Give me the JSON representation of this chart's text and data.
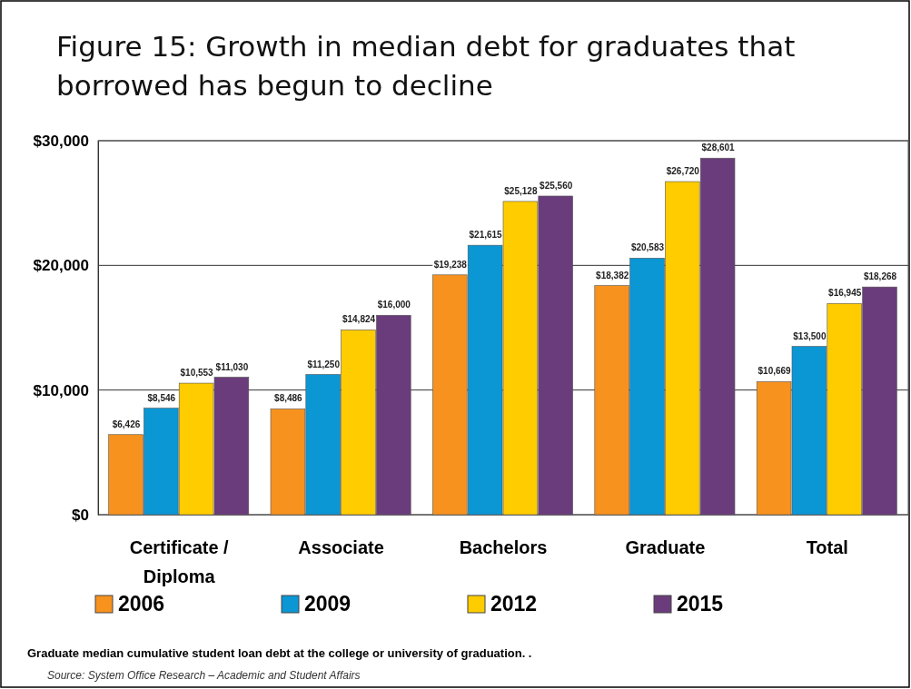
{
  "chart_data": {
    "type": "bar",
    "title": "Figure 15: Growth in median debt for graduates that borrowed has begun to decline",
    "categories": [
      "Certificate / Diploma",
      "Associate",
      "Bachelors",
      "Graduate",
      "Total"
    ],
    "series": [
      {
        "name": "2006",
        "color": "#f7921e",
        "values": [
          6426,
          8486,
          19238,
          18382,
          10669
        ],
        "value_labels": [
          "$6,426",
          "$8,486",
          "$19,238",
          "$18,382",
          "$10,669"
        ]
      },
      {
        "name": "2009",
        "color": "#0b96d4",
        "values": [
          8546,
          11250,
          21615,
          20583,
          13500
        ],
        "value_labels": [
          "$8,546",
          "$11,250",
          "$21,615",
          "$20,583",
          "$13,500"
        ]
      },
      {
        "name": "2012",
        "color": "#ffcc00",
        "values": [
          10553,
          14824,
          25128,
          26720,
          16945
        ],
        "value_labels": [
          "$10,553",
          "$14,824",
          "$25,128",
          "$26,720",
          "$16,945"
        ]
      },
      {
        "name": "2015",
        "color": "#6b3c7b",
        "values": [
          11030,
          16000,
          25560,
          28601,
          18268
        ],
        "value_labels": [
          "$11,030",
          "$16,000",
          "$25,560",
          "$28,601",
          "$18,268"
        ]
      }
    ],
    "ylim": [
      0,
      30000
    ],
    "yticks": [
      {
        "value": 0,
        "label": "$0"
      },
      {
        "value": 10000,
        "label": "$10,000"
      },
      {
        "value": 20000,
        "label": "$20,000"
      },
      {
        "value": 30000,
        "label": "$30,000"
      }
    ],
    "grid": "y",
    "legend": "bottom",
    "annotations": [
      "Graduate median cumulative student loan debt at the college or university of graduation. .",
      "Source: System Office Research – Academic and Student Affairs"
    ]
  }
}
